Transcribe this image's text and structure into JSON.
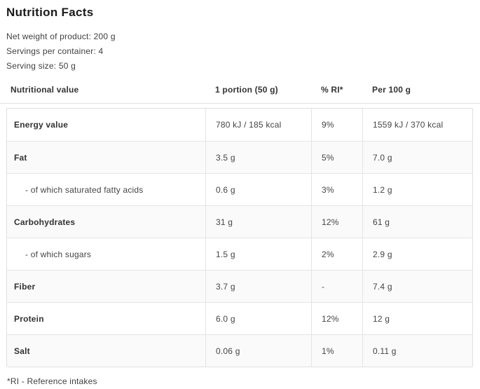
{
  "title": "Nutrition Facts",
  "meta": {
    "net_weight": "Net weight of product: 200 g",
    "servings_per_container": "Servings per container: 4",
    "serving_size": "Serving size: 50 g"
  },
  "table": {
    "headers": [
      "Nutritional value",
      "1 portion (50 g)",
      "% RI*",
      "Per 100 g"
    ],
    "rows": [
      {
        "name": "Energy value",
        "portion": "780 kJ / 185 kcal",
        "ri": "9%",
        "per100": "1559 kJ / 370 kcal",
        "sub": false
      },
      {
        "name": "Fat",
        "portion": "3.5 g",
        "ri": "5%",
        "per100": "7.0 g",
        "sub": false
      },
      {
        "name": "- of which saturated fatty acids",
        "portion": "0.6 g",
        "ri": "3%",
        "per100": "1.2 g",
        "sub": true
      },
      {
        "name": "Carbohydrates",
        "portion": "31 g",
        "ri": "12%",
        "per100": "61 g",
        "sub": false
      },
      {
        "name": "- of which sugars",
        "portion": "1.5 g",
        "ri": "2%",
        "per100": "2.9 g",
        "sub": true
      },
      {
        "name": "Fiber",
        "portion": "3.7 g",
        "ri": "-",
        "per100": "7.4 g",
        "sub": false
      },
      {
        "name": "Protein",
        "portion": "6.0 g",
        "ri": "12%",
        "per100": "12 g",
        "sub": false
      },
      {
        "name": "Salt",
        "portion": "0.06 g",
        "ri": "1%",
        "per100": "0.11 g",
        "sub": false
      }
    ]
  },
  "footnote": "*RI - Reference intakes",
  "colors": {
    "title_text": "#1a1a1a",
    "body_text": "#454545",
    "label_text": "#323232",
    "border": "#e0e0e0",
    "stripe_row_bg": "#fafafa",
    "background": "#ffffff"
  }
}
